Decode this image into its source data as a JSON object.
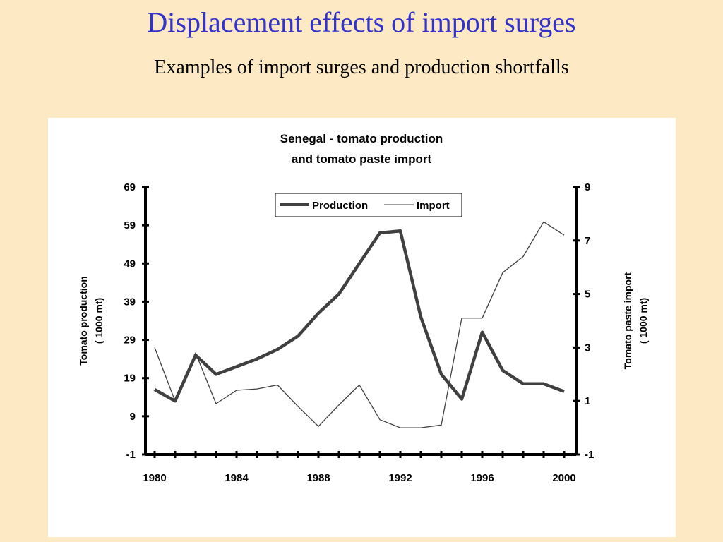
{
  "slide": {
    "title": "Displacement effects of import surges",
    "subtitle": "Examples of import surges and production shortfalls"
  },
  "chart_data": {
    "type": "line",
    "title_lines": [
      "Senegal - tomato production",
      "and tomato paste import"
    ],
    "x": [
      1980,
      1981,
      1982,
      1983,
      1984,
      1985,
      1986,
      1987,
      1988,
      1989,
      1990,
      1991,
      1992,
      1993,
      1994,
      1995,
      1996,
      1997,
      1998,
      1999,
      2000
    ],
    "x_ticks": [
      "1980",
      "1984",
      "1988",
      "1992",
      "1996",
      "2000"
    ],
    "x_tick_values": [
      1980,
      1984,
      1988,
      1992,
      1996,
      2000
    ],
    "xlim": [
      1980,
      2000
    ],
    "y_left": {
      "label_lines": [
        "Tomato production",
        "( 1000 mt)"
      ],
      "ylim": [
        -1,
        69
      ],
      "ticks": [
        "69",
        "59",
        "49",
        "39",
        "29",
        "19",
        "9",
        "-1"
      ],
      "tick_values": [
        69,
        59,
        49,
        39,
        29,
        19,
        9,
        -1
      ]
    },
    "y_right": {
      "label_lines": [
        "Tomato paste import",
        "( 1000 mt)"
      ],
      "ylim": [
        -1,
        9
      ],
      "ticks": [
        "9",
        "7",
        "5",
        "3",
        "1",
        "-1"
      ],
      "tick_values": [
        9,
        7,
        5,
        3,
        1,
        -1
      ]
    },
    "series": [
      {
        "name": "Production",
        "axis": "left",
        "color": "#404040",
        "values": [
          16,
          13,
          25,
          20,
          22,
          24,
          26.5,
          30,
          36,
          41,
          49,
          57,
          57.5,
          35,
          20,
          13.5,
          31,
          21,
          17.5,
          17.5,
          15.5
        ]
      },
      {
        "name": "Import",
        "axis": "right",
        "color": "#404040",
        "values": [
          3.0,
          1.0,
          2.8,
          0.9,
          1.4,
          1.45,
          1.6,
          0.8,
          0.05,
          0.85,
          1.6,
          0.3,
          0.0,
          0.0,
          0.1,
          4.1,
          4.1,
          5.8,
          6.4,
          7.7,
          7.2
        ]
      }
    ],
    "legend_position": "top-center",
    "grid": false
  }
}
